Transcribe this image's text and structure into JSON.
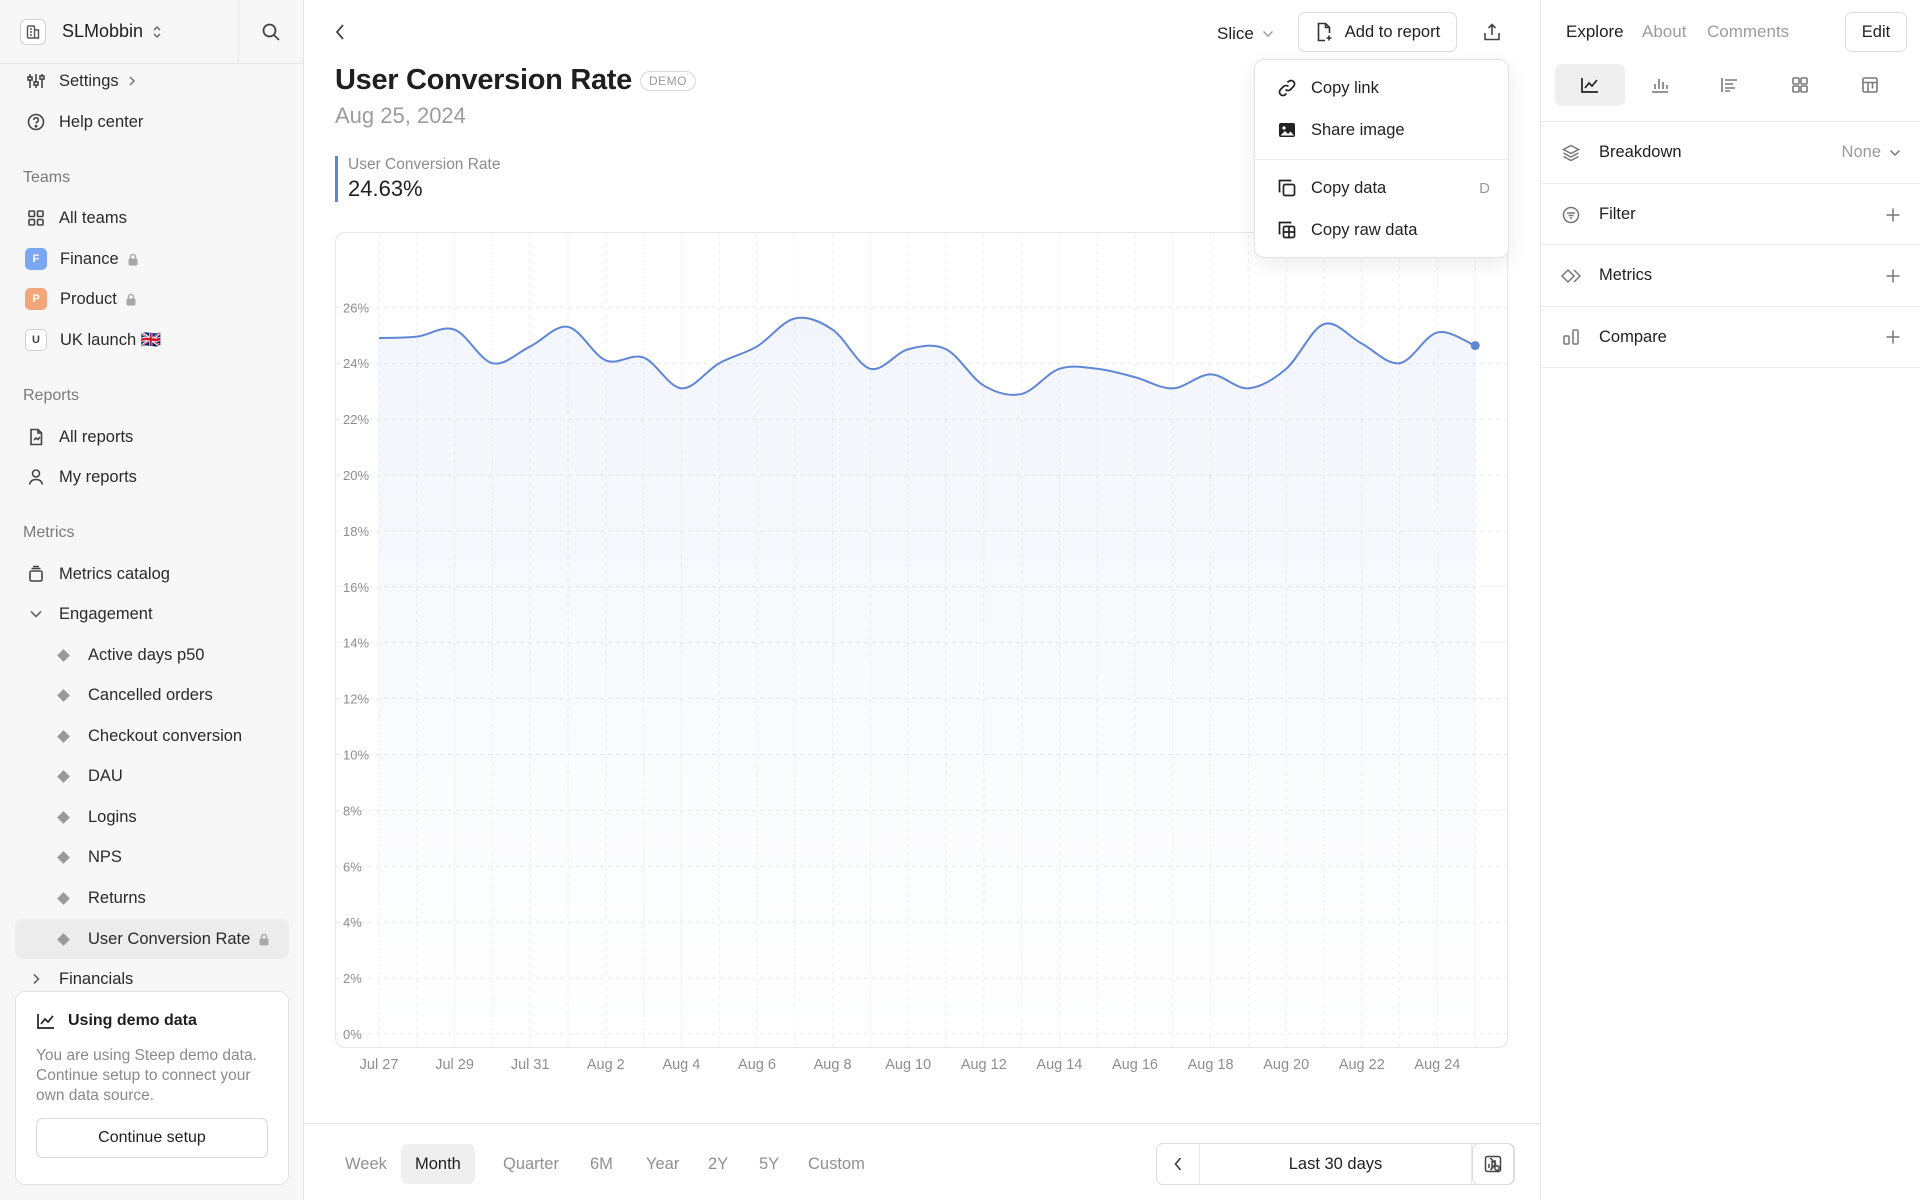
{
  "workspace": {
    "name": "SLMobbin"
  },
  "sidebar": {
    "settings": "Settings",
    "help": "Help center",
    "teams_label": "Teams",
    "all_teams": "All teams",
    "teams": [
      {
        "letter": "F",
        "name": "Finance",
        "color": "#7aa6f2"
      },
      {
        "letter": "P",
        "name": "Product",
        "color": "#f2a77a"
      },
      {
        "letter": "U",
        "name": "UK launch 🇬🇧",
        "color": "#ffffff"
      }
    ],
    "reports_label": "Reports",
    "all_reports": "All reports",
    "my_reports": "My reports",
    "metrics_label": "Metrics",
    "metrics_catalog": "Metrics catalog",
    "engagement": "Engagement",
    "engagement_items": [
      "Active days p50",
      "Cancelled orders",
      "Checkout conversion",
      "DAU",
      "Logins",
      "NPS",
      "Returns",
      "User Conversion Rate"
    ],
    "financials": "Financials"
  },
  "demo_card": {
    "title": "Using demo data",
    "desc": "You are using Steep demo data. Continue setup to connect your own data source.",
    "button": "Continue setup"
  },
  "header": {
    "title": "User Conversion Rate",
    "badge": "DEMO",
    "date": "Aug 25, 2024",
    "slice": "Slice",
    "add_to_report": "Add to report"
  },
  "legend": {
    "name": "User Conversion Rate",
    "value": "24.63%"
  },
  "share_menu": {
    "copy_link": "Copy link",
    "share_image": "Share image",
    "copy_data": "Copy data",
    "copy_data_kbd": "D",
    "copy_raw_data": "Copy raw data"
  },
  "periods": [
    "Week",
    "Month",
    "Quarter",
    "6M",
    "Year",
    "2Y",
    "5Y",
    "Custom"
  ],
  "active_period": "Month",
  "range": {
    "label": "Last 30 days"
  },
  "right_panel": {
    "tabs": [
      "Explore",
      "About",
      "Comments"
    ],
    "edit": "Edit",
    "breakdown": "Breakdown",
    "breakdown_value": "None",
    "filter": "Filter",
    "metrics": "Metrics",
    "compare": "Compare"
  },
  "chart_data": {
    "type": "area",
    "ylim": [
      0,
      26
    ],
    "y_ticks": [
      "0%",
      "2%",
      "4%",
      "6%",
      "8%",
      "10%",
      "12%",
      "14%",
      "16%",
      "18%",
      "20%",
      "22%",
      "24%",
      "26%"
    ],
    "x_ticks": [
      "Jul 27",
      "Jul 29",
      "Jul 31",
      "Aug 2",
      "Aug 4",
      "Aug 6",
      "Aug 8",
      "Aug 10",
      "Aug 12",
      "Aug 14",
      "Aug 16",
      "Aug 18",
      "Aug 20",
      "Aug 22",
      "Aug 24"
    ],
    "x": [
      "Jul 27",
      "Jul 28",
      "Jul 29",
      "Jul 30",
      "Jul 31",
      "Aug 1",
      "Aug 2",
      "Aug 3",
      "Aug 4",
      "Aug 5",
      "Aug 6",
      "Aug 7",
      "Aug 8",
      "Aug 9",
      "Aug 10",
      "Aug 11",
      "Aug 12",
      "Aug 13",
      "Aug 14",
      "Aug 15",
      "Aug 16",
      "Aug 17",
      "Aug 18",
      "Aug 19",
      "Aug 20",
      "Aug 21",
      "Aug 22",
      "Aug 23",
      "Aug 24",
      "Aug 25"
    ],
    "values": [
      24.9,
      24.95,
      25.2,
      24.0,
      24.6,
      25.3,
      24.1,
      24.2,
      23.1,
      24.0,
      24.6,
      25.6,
      25.2,
      23.8,
      24.5,
      24.5,
      23.2,
      22.9,
      23.8,
      23.8,
      23.5,
      23.1,
      23.6,
      23.1,
      23.8,
      25.4,
      24.7,
      24.0,
      25.1,
      24.63
    ],
    "line_color": "#5f86d4",
    "grid": true
  }
}
